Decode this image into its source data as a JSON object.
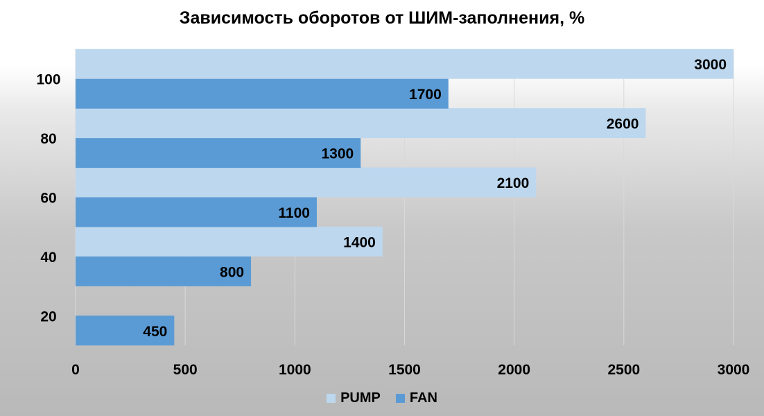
{
  "chart_data": {
    "type": "bar",
    "orientation": "horizontal",
    "title": "Зависимость оборотов от ШИМ-заполнения, %",
    "xlabel": "",
    "ylabel": "",
    "categories": [
      "20",
      "40",
      "60",
      "80",
      "100"
    ],
    "xlim": [
      0,
      3000
    ],
    "x_ticks": [
      0,
      500,
      1000,
      1500,
      2000,
      2500,
      3000
    ],
    "grid": "vertical",
    "legend_position": "bottom",
    "series": [
      {
        "name": "PUMP",
        "color": "#bdd7ee",
        "values": [
          null,
          1400,
          2100,
          2600,
          3000
        ]
      },
      {
        "name": "FAN",
        "color": "#5b9bd5",
        "values": [
          450,
          800,
          1100,
          1300,
          1700
        ]
      }
    ]
  }
}
